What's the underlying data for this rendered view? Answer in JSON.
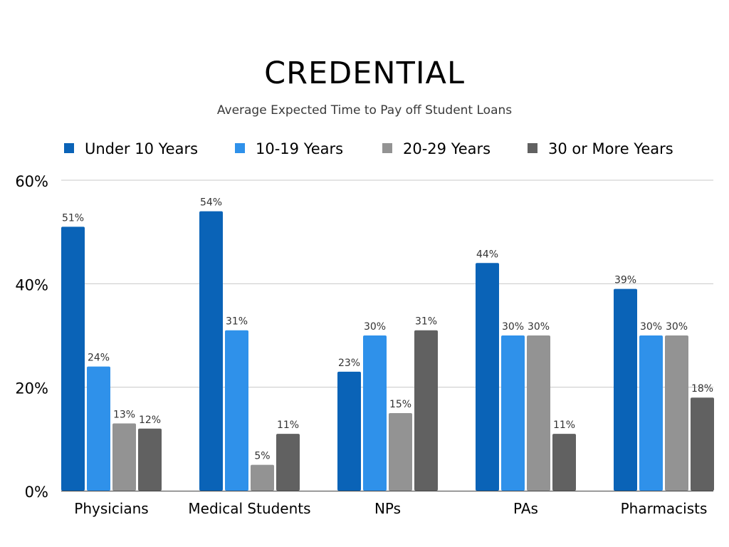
{
  "chart_data": {
    "type": "bar",
    "title": "CREDENTIAL",
    "subtitle": "Average Expected Time to Pay off Student Loans",
    "categories": [
      "Physicians",
      "Medical Students",
      "NPs",
      "PAs",
      "Pharmacists"
    ],
    "series": [
      {
        "name": "Under 10 Years",
        "color": "#0a63b7",
        "values": [
          51,
          54,
          23,
          44,
          39
        ]
      },
      {
        "name": "10-19 Years",
        "color": "#2f91ea",
        "values": [
          24,
          31,
          30,
          30,
          30
        ]
      },
      {
        "name": "20-29 Years",
        "color": "#939393",
        "values": [
          13,
          5,
          15,
          30,
          30
        ]
      },
      {
        "name": "30 or More Years",
        "color": "#616161",
        "values": [
          12,
          11,
          31,
          11,
          18
        ]
      }
    ],
    "value_suffix": "%",
    "ylim": [
      0,
      60
    ],
    "yticks": [
      0,
      20,
      40,
      60
    ],
    "ytick_labels": [
      "0%",
      "20%",
      "40%",
      "60%"
    ],
    "xlabel": "",
    "ylabel": "",
    "grid": true,
    "legend": "top"
  }
}
